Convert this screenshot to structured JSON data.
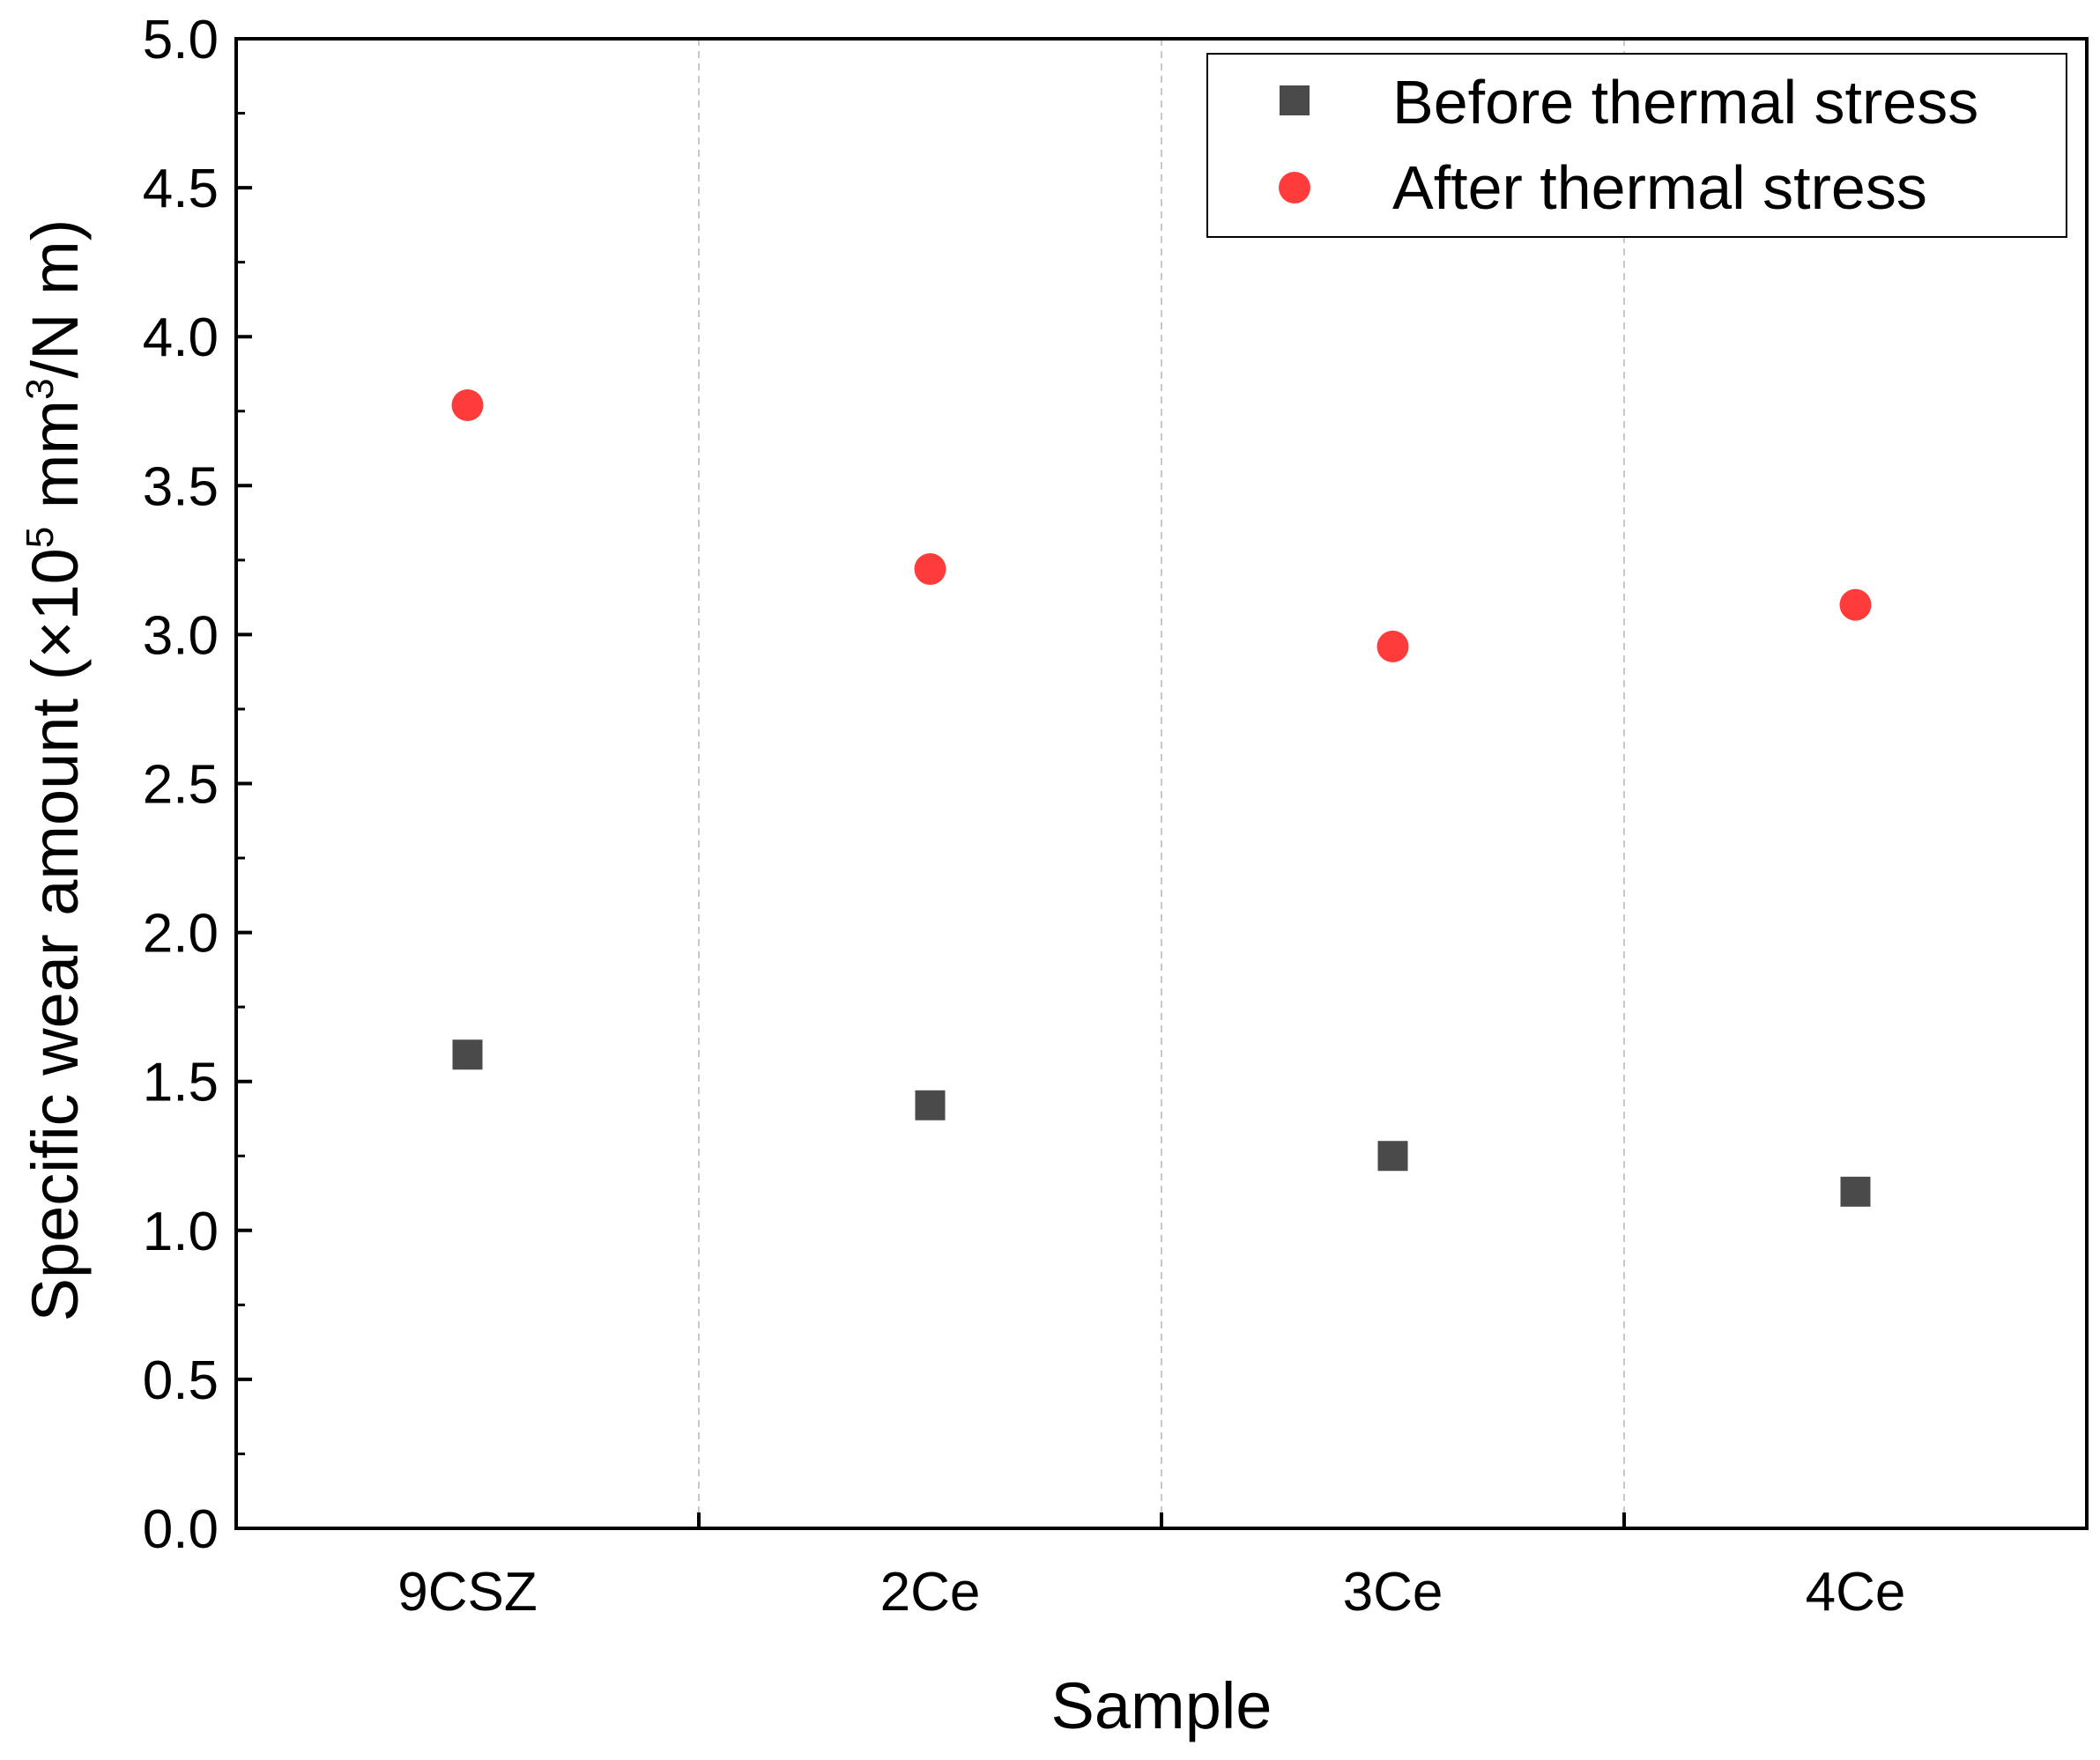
{
  "chart_data": {
    "type": "scatter",
    "title": "",
    "xlabel": "Sample",
    "ylabel": {
      "prefix": "Specific wear amount (×10",
      "exp1": "5",
      "middle": " mm",
      "exp2": "3",
      "suffix": "/N m)"
    },
    "categories": [
      "9CSZ",
      "2Ce",
      "3Ce",
      "4Ce"
    ],
    "ylim": [
      0,
      5
    ],
    "yticks": [
      "0.0",
      "0.5",
      "1.0",
      "1.5",
      "2.0",
      "2.5",
      "3.0",
      "3.5",
      "4.0",
      "4.5",
      "5.0"
    ],
    "grid": "vertical dashed separators between categories",
    "legend_position": "top-right",
    "series": [
      {
        "name": "Before thermal stress",
        "marker": "square",
        "color": "#4a4a4a",
        "values": [
          1.59,
          1.42,
          1.25,
          1.13
        ]
      },
      {
        "name": "After thermal stress",
        "marker": "circle",
        "color": "#ff3b3b",
        "values": [
          3.77,
          3.22,
          2.96,
          3.1
        ]
      }
    ]
  }
}
